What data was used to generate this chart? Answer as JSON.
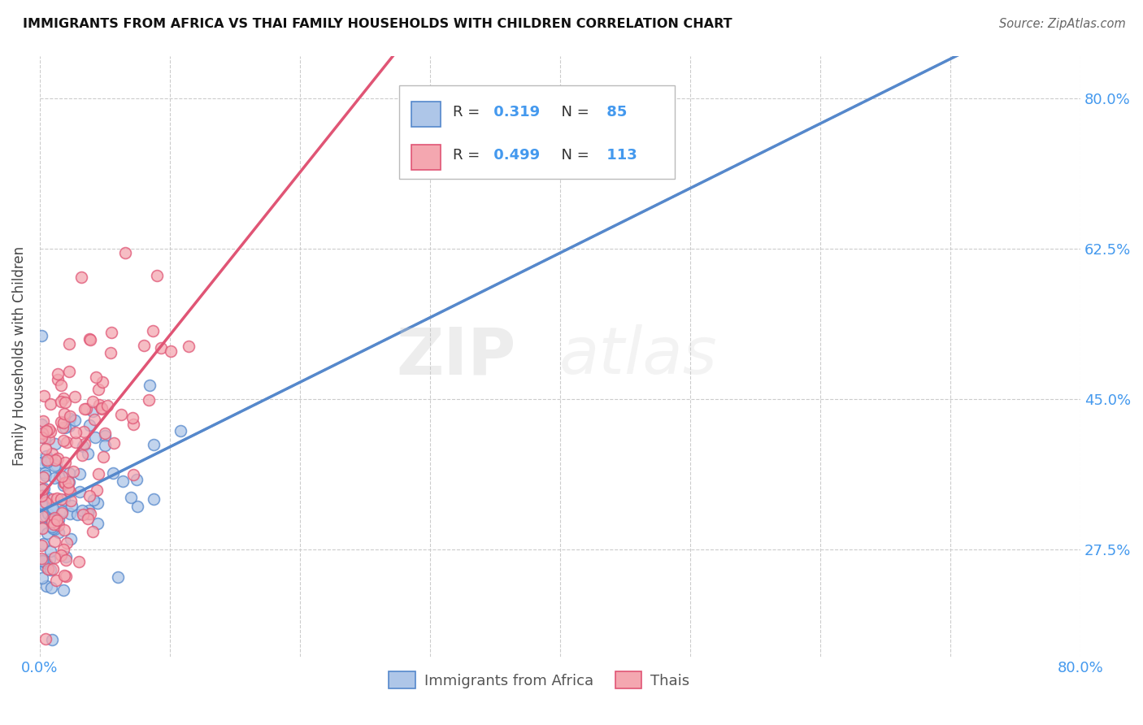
{
  "title": "IMMIGRANTS FROM AFRICA VS THAI FAMILY HOUSEHOLDS WITH CHILDREN CORRELATION CHART",
  "source": "Source: ZipAtlas.com",
  "ylabel": "Family Households with Children",
  "xlim": [
    0.0,
    0.8
  ],
  "ylim": [
    0.15,
    0.85
  ],
  "yticks": [
    0.275,
    0.45,
    0.625,
    0.8
  ],
  "ytick_labels": [
    "27.5%",
    "45.0%",
    "62.5%",
    "80.0%"
  ],
  "africa_R": 0.319,
  "africa_N": 85,
  "thai_R": 0.499,
  "thai_N": 113,
  "africa_color": "#aec6e8",
  "thai_color": "#f4a7b0",
  "africa_line_color": "#5588cc",
  "thai_line_color": "#e05575",
  "trend_line_color": "#aaaaaa",
  "legend_africa_label": "Immigrants from Africa",
  "legend_thai_label": "Thais",
  "africa_seed": 42,
  "thai_seed": 7
}
